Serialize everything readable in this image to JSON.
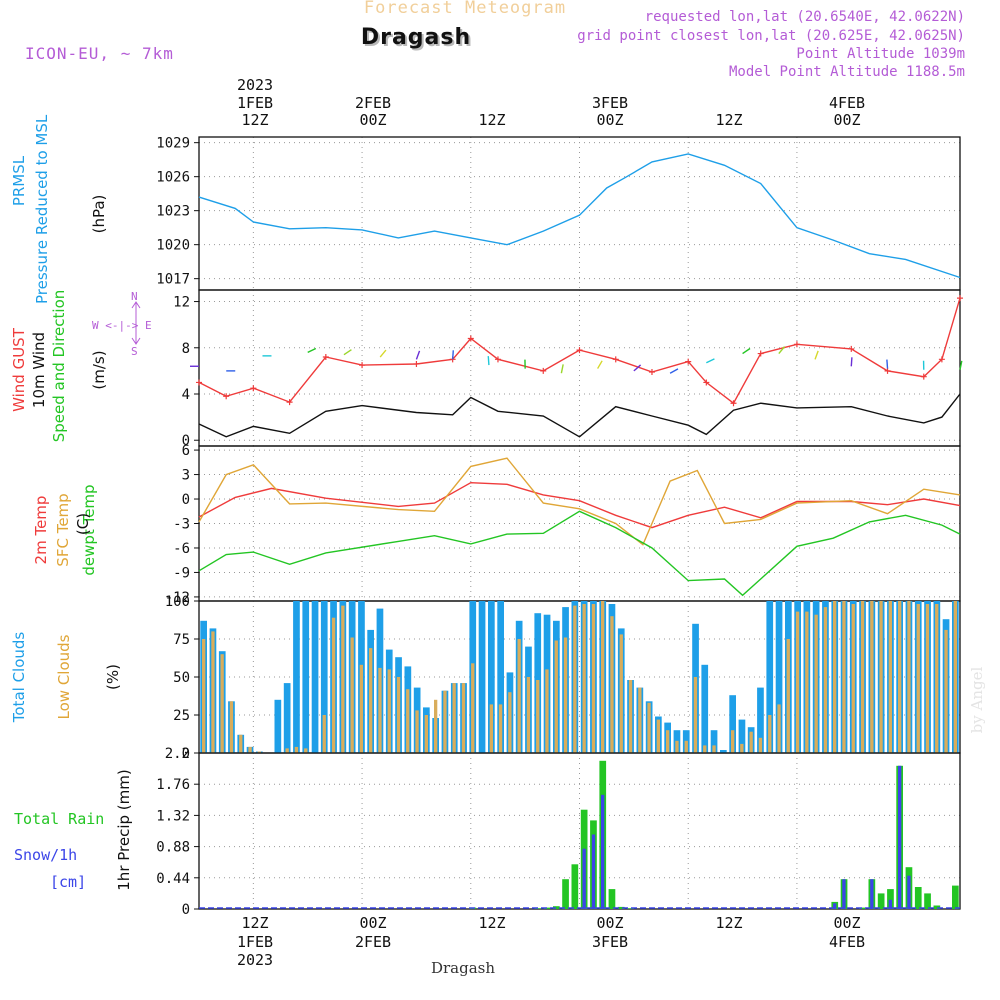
{
  "header": {
    "product": "Forecast Meteogram",
    "location": "Dragash",
    "model": "ICON-EU,  ~ 7km",
    "requested": "requested lon,lat (20.6540E, 42.0622N)",
    "grid_point": "grid point closest lon,lat (20.625E, 42.0625N)",
    "point_alt": "Point Altitude 1039m",
    "model_alt": "Model Point Altitude 1188.5m"
  },
  "top_axis": [
    {
      "l1": "2023",
      "l2": "1FEB",
      "l3": "12Z"
    },
    {
      "l1": "",
      "l2": "2FEB",
      "l3": "00Z"
    },
    {
      "l1": "",
      "l2": "",
      "l3": "12Z"
    },
    {
      "l1": "",
      "l2": "3FEB",
      "l3": "00Z"
    },
    {
      "l1": "",
      "l2": "",
      "l3": "12Z"
    },
    {
      "l1": "",
      "l2": "4FEB",
      "l3": "00Z"
    }
  ],
  "bottom_axis": [
    {
      "l1": "12Z",
      "l2": "1FEB",
      "l3": "2023"
    },
    {
      "l1": "00Z",
      "l2": "2FEB",
      "l3": ""
    },
    {
      "l1": "12Z",
      "l2": "",
      "l3": ""
    },
    {
      "l1": "00Z",
      "l2": "3FEB",
      "l3": ""
    },
    {
      "l1": "12Z",
      "l2": "",
      "l3": ""
    },
    {
      "l1": "00Z",
      "l2": "4FEB",
      "l3": ""
    }
  ],
  "footer_label": "Dragash",
  "credit": "by Angel",
  "panel_labels": {
    "pressure_line1": "PRMSL",
    "pressure_line2": "Pressure Reduced to MSL",
    "pressure_unit": "(hPa)",
    "wind_gust": "Wind GUST",
    "wind_10m": "10m Wind",
    "wind_dir": "Speed and Direction",
    "wind_unit": "(m/s)",
    "compass_n": "N",
    "compass_s": "S",
    "compass_we": "W <-|-> E",
    "temp_2m": "2m Temp",
    "temp_sfc": "SFC Temp",
    "temp_dew": "dewpt Temp",
    "temp_unit": "(C)",
    "cloud_total": "Total Clouds",
    "cloud_low": "Low Clouds",
    "cloud_unit": "(%)",
    "precip_total": "Total  Rain",
    "precip_snow": "Snow/1h",
    "precip_snow_unit": "[cm]",
    "precip_axis": "1hr Precip (mm)"
  },
  "colors": {
    "pressure": "#1e9fe8",
    "gust": "#ef3b3b",
    "wind": "#111111",
    "temp_2m": "#ef3b3b",
    "temp_sfc": "#e0a637",
    "temp_dew": "#23c523",
    "cloud_total": "#1e9fe8",
    "cloud_low": "#d9ad5b",
    "rain": "#23c523",
    "snow": "#3b45e8",
    "arrows": [
      "#6a2fd6",
      "#2f5fe8",
      "#1ec8d8",
      "#23c523",
      "#9ad62b",
      "#d6d82b"
    ]
  },
  "chart_data": {
    "time_axis": {
      "start": "2023-02-01 06Z",
      "end": "2023-02-04 18Z",
      "step_hours": 1,
      "major_ticks": [
        "2023-02-01 12Z",
        "2023-02-02 00Z",
        "2023-02-02 12Z",
        "2023-02-03 00Z",
        "2023-02-03 12Z",
        "2023-02-04 00Z"
      ]
    },
    "panels": [
      {
        "name": "PRMSL",
        "type": "line",
        "ylabel": "(hPa)",
        "ylim": [
          1016,
          1029.5
        ],
        "yticks": [
          1017,
          1020,
          1023,
          1026,
          1029
        ],
        "series": [
          {
            "name": "Pressure Reduced to MSL",
            "x": [
              "2023-02-01 06Z",
              "2023-02-01 10Z",
              "2023-02-01 12Z",
              "2023-02-01 16Z",
              "2023-02-01 20Z",
              "2023-02-02 00Z",
              "2023-02-02 04Z",
              "2023-02-02 08Z",
              "2023-02-02 12Z",
              "2023-02-02 16Z",
              "2023-02-02 20Z",
              "2023-02-03 00Z",
              "2023-02-03 03Z",
              "2023-02-03 05Z",
              "2023-02-03 08Z",
              "2023-02-03 12Z",
              "2023-02-03 16Z",
              "2023-02-03 20Z",
              "2023-02-04 00Z",
              "2023-02-04 04Z",
              "2023-02-04 08Z",
              "2023-02-04 12Z",
              "2023-02-04 18Z"
            ],
            "y": [
              1024.2,
              1023.2,
              1022.0,
              1021.4,
              1021.5,
              1021.3,
              1020.6,
              1021.2,
              1020.6,
              1020.0,
              1021.2,
              1022.6,
              1025.0,
              1025.9,
              1027.3,
              1028.0,
              1027.0,
              1025.4,
              1021.5,
              1020.4,
              1019.2,
              1018.7,
              1017.1
            ]
          }
        ]
      },
      {
        "name": "Wind",
        "type": "line",
        "ylabel": "(m/s)",
        "ylim": [
          -0.5,
          13
        ],
        "yticks": [
          0,
          4,
          8,
          12
        ],
        "series": [
          {
            "name": "Wind GUST",
            "x": [
              "2023-02-01 06Z",
              "2023-02-01 09Z",
              "2023-02-01 12Z",
              "2023-02-01 16Z",
              "2023-02-01 20Z",
              "2023-02-02 00Z",
              "2023-02-02 06Z",
              "2023-02-02 10Z",
              "2023-02-02 12Z",
              "2023-02-02 15Z",
              "2023-02-02 20Z",
              "2023-02-03 00Z",
              "2023-02-03 04Z",
              "2023-02-03 08Z",
              "2023-02-03 12Z",
              "2023-02-03 14Z",
              "2023-02-03 17Z",
              "2023-02-03 20Z",
              "2023-02-04 00Z",
              "2023-02-04 06Z",
              "2023-02-04 10Z",
              "2023-02-04 14Z",
              "2023-02-04 16Z",
              "2023-02-04 18Z"
            ],
            "y": [
              5.0,
              3.8,
              4.5,
              3.3,
              7.2,
              6.5,
              6.6,
              7.0,
              8.8,
              7.0,
              6.0,
              7.8,
              7.0,
              5.9,
              6.8,
              5.0,
              3.2,
              7.5,
              8.3,
              7.9,
              6.0,
              5.5,
              7.0,
              12.3
            ]
          },
          {
            "name": "10m Wind",
            "x": [
              "2023-02-01 06Z",
              "2023-02-01 09Z",
              "2023-02-01 12Z",
              "2023-02-01 16Z",
              "2023-02-01 20Z",
              "2023-02-02 00Z",
              "2023-02-02 06Z",
              "2023-02-02 10Z",
              "2023-02-02 12Z",
              "2023-02-02 15Z",
              "2023-02-02 20Z",
              "2023-02-03 00Z",
              "2023-02-03 04Z",
              "2023-02-03 08Z",
              "2023-02-03 12Z",
              "2023-02-03 14Z",
              "2023-02-03 17Z",
              "2023-02-03 20Z",
              "2023-02-04 00Z",
              "2023-02-04 06Z",
              "2023-02-04 10Z",
              "2023-02-04 14Z",
              "2023-02-04 16Z",
              "2023-02-04 18Z"
            ],
            "y": [
              1.4,
              0.3,
              1.2,
              0.6,
              2.5,
              3.0,
              2.4,
              2.2,
              3.7,
              2.5,
              2.1,
              0.3,
              2.9,
              2.1,
              1.3,
              0.5,
              2.6,
              3.2,
              2.8,
              2.9,
              2.1,
              1.5,
              2.0,
              4.0
            ]
          }
        ]
      },
      {
        "name": "Temperature",
        "type": "line",
        "ylabel": "(C)",
        "ylim": [
          -12.5,
          6.5
        ],
        "yticks": [
          -12,
          -9,
          -6,
          -3,
          0,
          3,
          6
        ],
        "series": [
          {
            "name": "2m Temp",
            "x": [
              "2023-02-01 06Z",
              "2023-02-01 10Z",
              "2023-02-01 14Z",
              "2023-02-01 20Z",
              "2023-02-02 04Z",
              "2023-02-02 08Z",
              "2023-02-02 12Z",
              "2023-02-02 16Z",
              "2023-02-02 20Z",
              "2023-02-03 00Z",
              "2023-02-03 04Z",
              "2023-02-03 08Z",
              "2023-02-03 12Z",
              "2023-02-03 16Z",
              "2023-02-03 20Z",
              "2023-02-04 00Z",
              "2023-02-04 06Z",
              "2023-02-04 10Z",
              "2023-02-04 14Z",
              "2023-02-04 18Z"
            ],
            "y": [
              -2.2,
              0.2,
              1.3,
              0.1,
              -0.9,
              -0.5,
              2.0,
              1.8,
              0.5,
              -0.2,
              -2.0,
              -3.5,
              -2.0,
              -1.0,
              -2.3,
              -0.3,
              -0.3,
              -0.7,
              0.0,
              -0.8
            ]
          },
          {
            "name": "SFC Temp",
            "x": [
              "2023-02-01 06Z",
              "2023-02-01 09Z",
              "2023-02-01 12Z",
              "2023-02-01 16Z",
              "2023-02-01 20Z",
              "2023-02-02 04Z",
              "2023-02-02 08Z",
              "2023-02-02 12Z",
              "2023-02-02 16Z",
              "2023-02-02 20Z",
              "2023-02-03 00Z",
              "2023-02-03 04Z",
              "2023-02-03 07Z",
              "2023-02-03 10Z",
              "2023-02-03 13Z",
              "2023-02-03 16Z",
              "2023-02-03 20Z",
              "2023-02-04 00Z",
              "2023-02-04 06Z",
              "2023-02-04 10Z",
              "2023-02-04 14Z",
              "2023-02-04 18Z"
            ],
            "y": [
              -2.8,
              3.0,
              4.2,
              -0.6,
              -0.5,
              -1.3,
              -1.5,
              4.0,
              5.0,
              -0.5,
              -1.2,
              -3.0,
              -5.6,
              2.2,
              3.5,
              -3.0,
              -2.5,
              -0.5,
              -0.2,
              -1.8,
              1.2,
              0.5
            ]
          },
          {
            "name": "dewpt Temp",
            "x": [
              "2023-02-01 06Z",
              "2023-02-01 09Z",
              "2023-02-01 12Z",
              "2023-02-01 16Z",
              "2023-02-01 20Z",
              "2023-02-02 04Z",
              "2023-02-02 08Z",
              "2023-02-02 12Z",
              "2023-02-02 16Z",
              "2023-02-02 20Z",
              "2023-02-03 00Z",
              "2023-02-03 04Z",
              "2023-02-03 08Z",
              "2023-02-03 12Z",
              "2023-02-03 16Z",
              "2023-02-03 18Z",
              "2023-02-03 20Z",
              "2023-02-04 00Z",
              "2023-02-04 04Z",
              "2023-02-04 08Z",
              "2023-02-04 12Z",
              "2023-02-04 16Z",
              "2023-02-04 18Z"
            ],
            "y": [
              -8.8,
              -6.8,
              -6.5,
              -8.0,
              -6.6,
              -5.2,
              -4.5,
              -5.5,
              -4.3,
              -4.2,
              -1.5,
              -3.5,
              -6.0,
              -10.0,
              -9.8,
              -11.8,
              -9.8,
              -5.8,
              -4.8,
              -2.8,
              -2.0,
              -3.2,
              -4.3
            ]
          }
        ]
      },
      {
        "name": "Clouds",
        "type": "bar",
        "ylabel": "(%)",
        "ylim": [
          0,
          100
        ],
        "yticks": [
          0,
          25,
          50,
          75,
          100
        ],
        "series": [
          {
            "name": "Total Clouds",
            "values": [
              87,
              82,
              67,
              34,
              12,
              4,
              1,
              0,
              35,
              46,
              100,
              100,
              100,
              100,
              100,
              100,
              100,
              100,
              81,
              95,
              68,
              63,
              57,
              43,
              30,
              23,
              41,
              46,
              46,
              100,
              100,
              100,
              100,
              53,
              87,
              70,
              92,
              91,
              87,
              96,
              100,
              100,
              100,
              100,
              98,
              82,
              48,
              43,
              34,
              24,
              20,
              15,
              15,
              85,
              58,
              15,
              2,
              38,
              22,
              17,
              43,
              100,
              100,
              100,
              100,
              100,
              100,
              100,
              100,
              100,
              100,
              100,
              100,
              100,
              100,
              100,
              100,
              100,
              100,
              100,
              88,
              100
            ]
          },
          {
            "name": "Low Clouds",
            "values": [
              75,
              80,
              65,
              34,
              12,
              4,
              1,
              0,
              0,
              3,
              4,
              3,
              0,
              25,
              89,
              97,
              76,
              58,
              69,
              56,
              55,
              50,
              42,
              28,
              25,
              35,
              41,
              46,
              46,
              59,
              0,
              32,
              32,
              40,
              75,
              50,
              48,
              55,
              74,
              76,
              97,
              98,
              98,
              100,
              90,
              78,
              48,
              43,
              33,
              22,
              15,
              8,
              8,
              50,
              5,
              5,
              0,
              15,
              6,
              14,
              10,
              25,
              32,
              75,
              93,
              93,
              91,
              96,
              100,
              100,
              98,
              100,
              100,
              100,
              100,
              100,
              100,
              98,
              98,
              98,
              81,
              100
            ]
          }
        ]
      },
      {
        "name": "Precipitation",
        "type": "bar",
        "ylabel": "1hr Precip (mm)",
        "ylim": [
          0,
          2.2
        ],
        "yticks": [
          0,
          0.44,
          0.88,
          1.32,
          1.76,
          2.2
        ],
        "series": [
          {
            "name": "Total Rain",
            "values": [
              0,
              0,
              0,
              0,
              0,
              0,
              0,
              0,
              0,
              0,
              0,
              0,
              0,
              0,
              0,
              0,
              0,
              0,
              0,
              0,
              0,
              0,
              0,
              0,
              0,
              0,
              0,
              0,
              0,
              0.02,
              0,
              0,
              0,
              0,
              0,
              0,
              0.01,
              0.02,
              0.04,
              0.42,
              0.63,
              1.4,
              1.25,
              2.09,
              0.28,
              0.03,
              0.01,
              0,
              0,
              0,
              0,
              0,
              0,
              0,
              0,
              0,
              0,
              0,
              0,
              0,
              0,
              0,
              0,
              0,
              0,
              0,
              0,
              0,
              0.1,
              0.42,
              0,
              0.02,
              0.42,
              0.22,
              0.28,
              2.02,
              0.59,
              0.31,
              0.22,
              0.05,
              0,
              0.33
            ]
          },
          {
            "name": "Snow/1h",
            "values": [
              0,
              0,
              0,
              0,
              0,
              0,
              0,
              0,
              0,
              0,
              0,
              0,
              0,
              0,
              0,
              0,
              0,
              0,
              0,
              0,
              0,
              0,
              0,
              0,
              0,
              0,
              0,
              0,
              0,
              0,
              0,
              0,
              0,
              0,
              0,
              0,
              0,
              0,
              0,
              0,
              0,
              0.85,
              1.05,
              1.61,
              0,
              0,
              0,
              0,
              0,
              0,
              0,
              0,
              0,
              0,
              0,
              0,
              0,
              0,
              0,
              0,
              0,
              0,
              0,
              0,
              0,
              0,
              0,
              0,
              0.08,
              0.42,
              0,
              0,
              0.42,
              0,
              0.13,
              2.02,
              0.47,
              0,
              0,
              0,
              0,
              0
            ]
          }
        ]
      }
    ]
  }
}
